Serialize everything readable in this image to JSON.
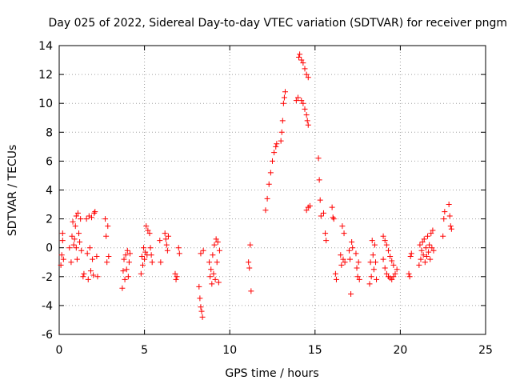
{
  "chart_data": {
    "type": "scatter",
    "title": "Day 025 of 2022, Sidereal Day-to-day VTEC variation (SDTVAR) for receiver pngm",
    "xlabel": "GPS time / hours",
    "ylabel": "SDTVAR / TECUs",
    "xlim": [
      0,
      25
    ],
    "ylim": [
      -6,
      14
    ],
    "xticks": [
      0,
      5,
      10,
      15,
      20,
      25
    ],
    "yticks": [
      -6,
      -4,
      -2,
      0,
      2,
      4,
      6,
      8,
      10,
      12,
      14
    ],
    "grid": true,
    "marker": "plus",
    "color": "#ff0000",
    "series": [
      {
        "name": "SDTVAR",
        "points": [
          [
            0.1,
            -1.2
          ],
          [
            0.15,
            -0.5
          ],
          [
            0.2,
            0.5
          ],
          [
            0.2,
            1.0
          ],
          [
            0.25,
            -0.8
          ],
          [
            0.6,
            0.0
          ],
          [
            0.7,
            -1.0
          ],
          [
            0.75,
            0.8
          ],
          [
            0.8,
            1.8
          ],
          [
            0.85,
            0.2
          ],
          [
            0.9,
            0.6
          ],
          [
            0.95,
            1.5
          ],
          [
            1.0,
            2.2
          ],
          [
            1.0,
            0.0
          ],
          [
            1.05,
            -0.8
          ],
          [
            1.1,
            2.4
          ],
          [
            1.15,
            1.0
          ],
          [
            1.2,
            0.4
          ],
          [
            1.25,
            2.0
          ],
          [
            1.3,
            -0.2
          ],
          [
            1.4,
            -2.0
          ],
          [
            1.45,
            -1.8
          ],
          [
            1.6,
            2.0
          ],
          [
            1.65,
            -0.4
          ],
          [
            1.7,
            -2.2
          ],
          [
            1.75,
            2.2
          ],
          [
            1.8,
            0.0
          ],
          [
            1.85,
            -1.6
          ],
          [
            1.9,
            2.1
          ],
          [
            1.95,
            -0.8
          ],
          [
            2.0,
            -1.9
          ],
          [
            2.05,
            2.4
          ],
          [
            2.1,
            2.5
          ],
          [
            2.2,
            -0.6
          ],
          [
            2.25,
            -2.0
          ],
          [
            2.7,
            2.0
          ],
          [
            2.75,
            0.8
          ],
          [
            2.8,
            -1.0
          ],
          [
            2.85,
            1.5
          ],
          [
            2.9,
            -0.6
          ],
          [
            3.7,
            -2.8
          ],
          [
            3.75,
            -1.6
          ],
          [
            3.8,
            -0.8
          ],
          [
            3.85,
            -2.2
          ],
          [
            3.9,
            -0.5
          ],
          [
            3.95,
            -1.5
          ],
          [
            4.0,
            -0.2
          ],
          [
            4.05,
            -2.0
          ],
          [
            4.1,
            -1.0
          ],
          [
            4.15,
            -0.4
          ],
          [
            4.8,
            -1.8
          ],
          [
            4.85,
            -0.6
          ],
          [
            4.9,
            -1.2
          ],
          [
            4.95,
            0.0
          ],
          [
            5.0,
            -0.8
          ],
          [
            5.05,
            -0.3
          ],
          [
            5.1,
            1.5
          ],
          [
            5.15,
            -0.5
          ],
          [
            5.2,
            1.2
          ],
          [
            5.3,
            1.0
          ],
          [
            5.35,
            0.0
          ],
          [
            5.4,
            -0.5
          ],
          [
            5.45,
            -1.0
          ],
          [
            5.9,
            0.5
          ],
          [
            5.95,
            -1.0
          ],
          [
            6.2,
            1.0
          ],
          [
            6.25,
            0.6
          ],
          [
            6.3,
            0.2
          ],
          [
            6.35,
            -0.2
          ],
          [
            6.4,
            0.8
          ],
          [
            6.8,
            -1.8
          ],
          [
            6.85,
            -2.2
          ],
          [
            6.9,
            -2.0
          ],
          [
            7.0,
            0.0
          ],
          [
            7.05,
            -0.4
          ],
          [
            8.2,
            -2.7
          ],
          [
            8.25,
            -3.5
          ],
          [
            8.3,
            -4.1
          ],
          [
            8.35,
            -4.4
          ],
          [
            8.4,
            -4.8
          ],
          [
            8.3,
            -0.4
          ],
          [
            8.45,
            -0.2
          ],
          [
            8.8,
            -1.0
          ],
          [
            8.85,
            -2.0
          ],
          [
            8.9,
            -1.5
          ],
          [
            8.95,
            -2.5
          ],
          [
            9.0,
            -0.5
          ],
          [
            9.05,
            -1.8
          ],
          [
            9.1,
            0.2
          ],
          [
            9.15,
            -2.2
          ],
          [
            9.2,
            0.6
          ],
          [
            9.25,
            -1.0
          ],
          [
            9.3,
            0.4
          ],
          [
            9.35,
            -2.4
          ],
          [
            9.4,
            -0.2
          ],
          [
            11.1,
            -1.0
          ],
          [
            11.15,
            -1.4
          ],
          [
            11.2,
            0.2
          ],
          [
            11.25,
            -3.0
          ],
          [
            12.1,
            2.6
          ],
          [
            12.2,
            3.4
          ],
          [
            12.3,
            4.4
          ],
          [
            12.4,
            5.2
          ],
          [
            12.5,
            6.0
          ],
          [
            12.6,
            6.6
          ],
          [
            12.7,
            7.0
          ],
          [
            12.75,
            7.2
          ],
          [
            13.0,
            7.4
          ],
          [
            13.05,
            8.0
          ],
          [
            13.1,
            8.8
          ],
          [
            13.15,
            10.0
          ],
          [
            13.2,
            10.4
          ],
          [
            13.25,
            10.8
          ],
          [
            13.9,
            10.2
          ],
          [
            14.0,
            10.4
          ],
          [
            14.05,
            13.2
          ],
          [
            14.1,
            13.4
          ],
          [
            14.2,
            13.0
          ],
          [
            14.3,
            12.8
          ],
          [
            14.4,
            12.4
          ],
          [
            14.5,
            12.0
          ],
          [
            14.6,
            11.8
          ],
          [
            14.2,
            10.2
          ],
          [
            14.3,
            10.0
          ],
          [
            14.4,
            9.6
          ],
          [
            14.5,
            9.2
          ],
          [
            14.55,
            8.8
          ],
          [
            14.6,
            8.5
          ],
          [
            14.5,
            2.6
          ],
          [
            14.6,
            2.8
          ],
          [
            14.7,
            2.9
          ],
          [
            15.2,
            6.2
          ],
          [
            15.25,
            4.7
          ],
          [
            15.3,
            3.3
          ],
          [
            15.35,
            2.2
          ],
          [
            15.5,
            2.4
          ],
          [
            15.6,
            1.0
          ],
          [
            15.65,
            0.5
          ],
          [
            16.0,
            2.8
          ],
          [
            16.05,
            2.1
          ],
          [
            16.1,
            2.0
          ],
          [
            16.2,
            -1.8
          ],
          [
            16.25,
            -2.2
          ],
          [
            16.5,
            -0.5
          ],
          [
            16.55,
            -1.2
          ],
          [
            16.6,
            1.5
          ],
          [
            16.65,
            -0.8
          ],
          [
            16.7,
            1.0
          ],
          [
            16.75,
            -1.0
          ],
          [
            17.0,
            -0.2
          ],
          [
            17.05,
            -0.8
          ],
          [
            17.1,
            -3.2
          ],
          [
            17.15,
            0.4
          ],
          [
            17.2,
            0.0
          ],
          [
            17.4,
            -0.4
          ],
          [
            17.45,
            -1.4
          ],
          [
            17.5,
            -2.0
          ],
          [
            17.55,
            -1.0
          ],
          [
            17.6,
            -2.2
          ],
          [
            18.2,
            -2.5
          ],
          [
            18.25,
            -1.0
          ],
          [
            18.3,
            -2.0
          ],
          [
            18.35,
            0.5
          ],
          [
            18.4,
            -0.5
          ],
          [
            18.45,
            -1.5
          ],
          [
            18.5,
            0.2
          ],
          [
            18.55,
            -1.0
          ],
          [
            18.6,
            -2.2
          ],
          [
            19.0,
            0.8
          ],
          [
            19.1,
            0.5
          ],
          [
            19.2,
            0.2
          ],
          [
            19.3,
            -0.2
          ],
          [
            19.4,
            -0.6
          ],
          [
            19.5,
            -0.9
          ],
          [
            19.6,
            -1.2
          ],
          [
            19.0,
            -0.8
          ],
          [
            19.1,
            -1.4
          ],
          [
            19.2,
            -1.8
          ],
          [
            19.3,
            -2.0
          ],
          [
            19.4,
            -2.1
          ],
          [
            19.5,
            -2.2
          ],
          [
            19.6,
            -2.0
          ],
          [
            19.7,
            -1.8
          ],
          [
            19.8,
            -1.5
          ],
          [
            20.5,
            -1.8
          ],
          [
            20.55,
            -2.0
          ],
          [
            20.6,
            -0.6
          ],
          [
            20.65,
            -0.4
          ],
          [
            21.1,
            -1.2
          ],
          [
            21.15,
            0.2
          ],
          [
            21.2,
            -0.8
          ],
          [
            21.25,
            -0.2
          ],
          [
            21.3,
            0.4
          ],
          [
            21.35,
            -0.5
          ],
          [
            21.4,
            0.6
          ],
          [
            21.45,
            -1.0
          ],
          [
            21.5,
            0.0
          ],
          [
            21.55,
            -0.6
          ],
          [
            21.6,
            0.8
          ],
          [
            21.65,
            -0.3
          ],
          [
            21.7,
            0.2
          ],
          [
            21.75,
            -0.8
          ],
          [
            21.8,
            1.0
          ],
          [
            21.85,
            0.0
          ],
          [
            21.9,
            1.2
          ],
          [
            21.95,
            -0.2
          ],
          [
            22.5,
            0.8
          ],
          [
            22.55,
            2.0
          ],
          [
            22.6,
            2.5
          ],
          [
            22.85,
            3.0
          ],
          [
            22.9,
            2.2
          ],
          [
            22.95,
            1.5
          ],
          [
            23.0,
            1.3
          ]
        ]
      }
    ]
  }
}
